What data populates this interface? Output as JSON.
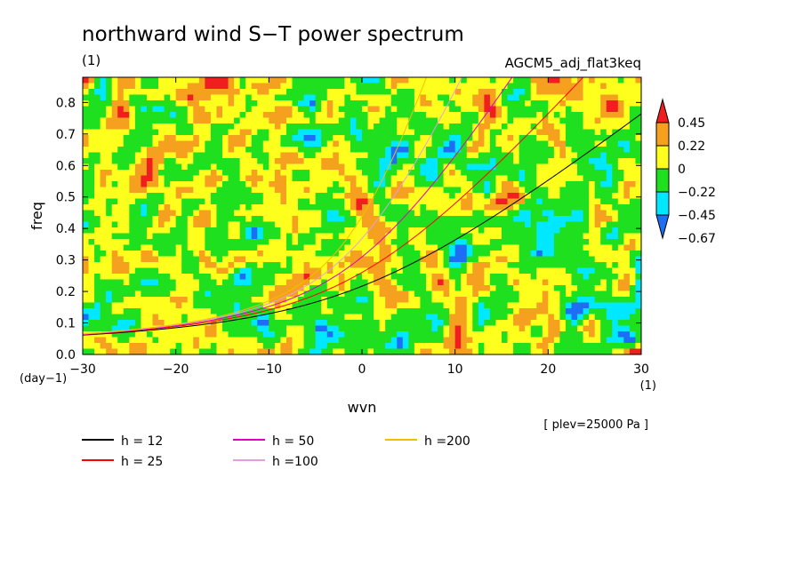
{
  "chart_data": {
    "type": "heatmap",
    "title": "northward wind S−T power spectrum",
    "title_unit": "(1)",
    "experiment": "AGCM5_adj_flat3keq",
    "xlabel": "wvn",
    "ylabel": "freq",
    "x_unit": "(1)",
    "y_unit": "(day−1)",
    "level_note": "[ plev=25000 Pa ]",
    "xlim": [
      -30,
      30
    ],
    "ylim": [
      0.0,
      0.88
    ],
    "x_ticks": [
      -30,
      -20,
      -10,
      0,
      10,
      20,
      30
    ],
    "x_tick_labels": [
      "−30",
      "−20",
      "−10",
      "0",
      "10",
      "20",
      "30"
    ],
    "y_ticks": [
      0.0,
      0.1,
      0.2,
      0.3,
      0.4,
      0.5,
      0.6,
      0.7,
      0.8
    ],
    "y_tick_labels": [
      "0.0",
      "0.1",
      "0.2",
      "0.3",
      "0.4",
      "0.5",
      "0.6",
      "0.7",
      "0.8"
    ],
    "colorbar": {
      "levels": [
        -0.67,
        -0.45,
        -0.22,
        0,
        0.22,
        0.45
      ],
      "level_labels": [
        "−0.67",
        "−0.45",
        "−0.22",
        "0",
        "0.22",
        "0.45"
      ],
      "colors": [
        "#1e6ef5",
        "#00e8ff",
        "#1ee01e",
        "#ffff1e",
        "#f5a01e",
        "#f01e1e"
      ]
    },
    "series": [
      {
        "name": "h = 12",
        "equivalent_depth_m": 12,
        "color": "#000000"
      },
      {
        "name": "h = 25",
        "equivalent_depth_m": 25,
        "color": "#ff0000"
      },
      {
        "name": "h = 50",
        "equivalent_depth_m": 50,
        "color": "#e000c0"
      },
      {
        "name": "h =100",
        "equivalent_depth_m": 100,
        "color": "#e0a0e0"
      },
      {
        "name": "h =200",
        "equivalent_depth_m": 200,
        "color": "#f0c000"
      }
    ],
    "grid": false
  }
}
